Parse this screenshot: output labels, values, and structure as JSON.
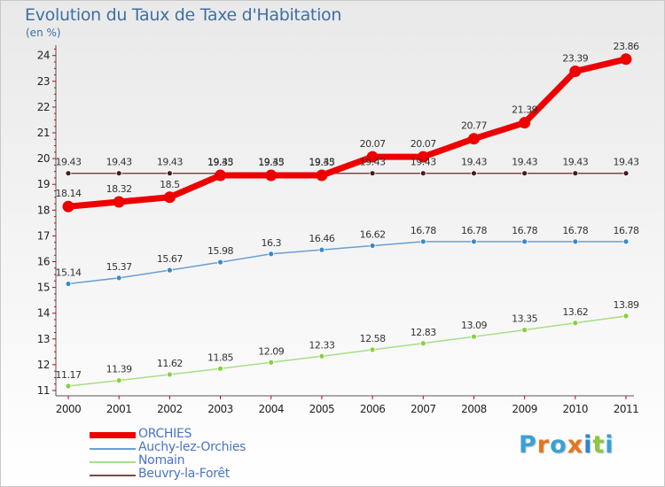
{
  "header": {
    "title": "Evolution du Taux de Taxe d'Habitation",
    "unit": "(en %)"
  },
  "logo": {
    "letters": [
      "P",
      "r",
      "o",
      "x",
      "i",
      "t",
      "i"
    ],
    "colors": [
      "#3aa0d8",
      "#e8751a",
      "#3aa0d8",
      "#e8751a",
      "#2e86c9",
      "#8dc63f",
      "#3aa0d8"
    ]
  },
  "chart_data": {
    "type": "line",
    "title": "Evolution du Taux de Taxe d'Habitation",
    "ylabel": "(en %)",
    "xlabel": "",
    "x": [
      "2000",
      "2001",
      "2002",
      "2003",
      "2004",
      "2005",
      "2006",
      "2007",
      "2008",
      "2009",
      "2010",
      "2011"
    ],
    "yticks": [
      11,
      12,
      13,
      14,
      15,
      16,
      17,
      18,
      19,
      20,
      21,
      22,
      23,
      24
    ],
    "ylim": [
      11,
      24.3
    ],
    "grid": false,
    "legend_position": "bottom-left",
    "series": [
      {
        "name": "Beuvry-la-Forêt",
        "color": "#7a4a4a",
        "marker": "#4a1a1a",
        "values": [
          19.43,
          19.43,
          19.43,
          19.43,
          19.43,
          19.43,
          19.43,
          19.43,
          19.43,
          19.43,
          19.43,
          19.43
        ],
        "labels": [
          "19.43",
          "19.43",
          "19.43",
          "19.43",
          "19.43",
          "19.43",
          "19.43",
          "19.43",
          "19.43",
          "19.43",
          "19.43",
          "19.43"
        ],
        "label_position": "above"
      },
      {
        "name": "Nomain",
        "color": "#a7de86",
        "marker": "#86d23c",
        "values": [
          11.17,
          11.39,
          11.62,
          11.85,
          12.09,
          12.33,
          12.58,
          12.83,
          13.09,
          13.35,
          13.62,
          13.89
        ],
        "labels": [
          "11.17",
          "11.39",
          "11.62",
          "11.85",
          "12.09",
          "12.33",
          "12.58",
          "12.83",
          "13.09",
          "13.35",
          "13.62",
          "13.89"
        ],
        "label_position": "above"
      },
      {
        "name": "Auchy-lez-Orchies",
        "color": "#6a9fd0",
        "marker": "#3a88c8",
        "values": [
          15.14,
          15.37,
          15.67,
          15.98,
          16.3,
          16.46,
          16.62,
          16.78,
          16.78,
          16.78,
          16.78,
          16.78
        ],
        "labels": [
          "15.14",
          "15.37",
          "15.67",
          "15.98",
          "16.3",
          "16.46",
          "16.62",
          "16.78",
          "16.78",
          "16.78",
          "16.78",
          "16.78"
        ],
        "label_position": "above"
      },
      {
        "name": "ORCHIES",
        "color": "#ee0000",
        "marker": "#ee0000",
        "values": [
          18.14,
          18.32,
          18.5,
          19.35,
          19.35,
          19.35,
          20.07,
          20.07,
          20.77,
          21.39,
          23.39,
          23.86
        ],
        "labels": [
          "18.14",
          "18.32",
          "18.5",
          "19.35",
          "19.35",
          "19.35",
          "20.07",
          "20.07",
          "20.77",
          "21.39",
          "23.39",
          "23.86"
        ],
        "label_position": "above"
      }
    ]
  },
  "legend": {
    "items": [
      {
        "name": "ORCHIES",
        "color": "#ee0000",
        "weight": 6
      },
      {
        "name": "Auchy-lez-Orchies",
        "color": "#6a9fd0",
        "weight": 2
      },
      {
        "name": "Nomain",
        "color": "#a7de86",
        "weight": 2
      },
      {
        "name": "Beuvry-la-Forêt",
        "color": "#7a4a4a",
        "weight": 2
      }
    ]
  }
}
